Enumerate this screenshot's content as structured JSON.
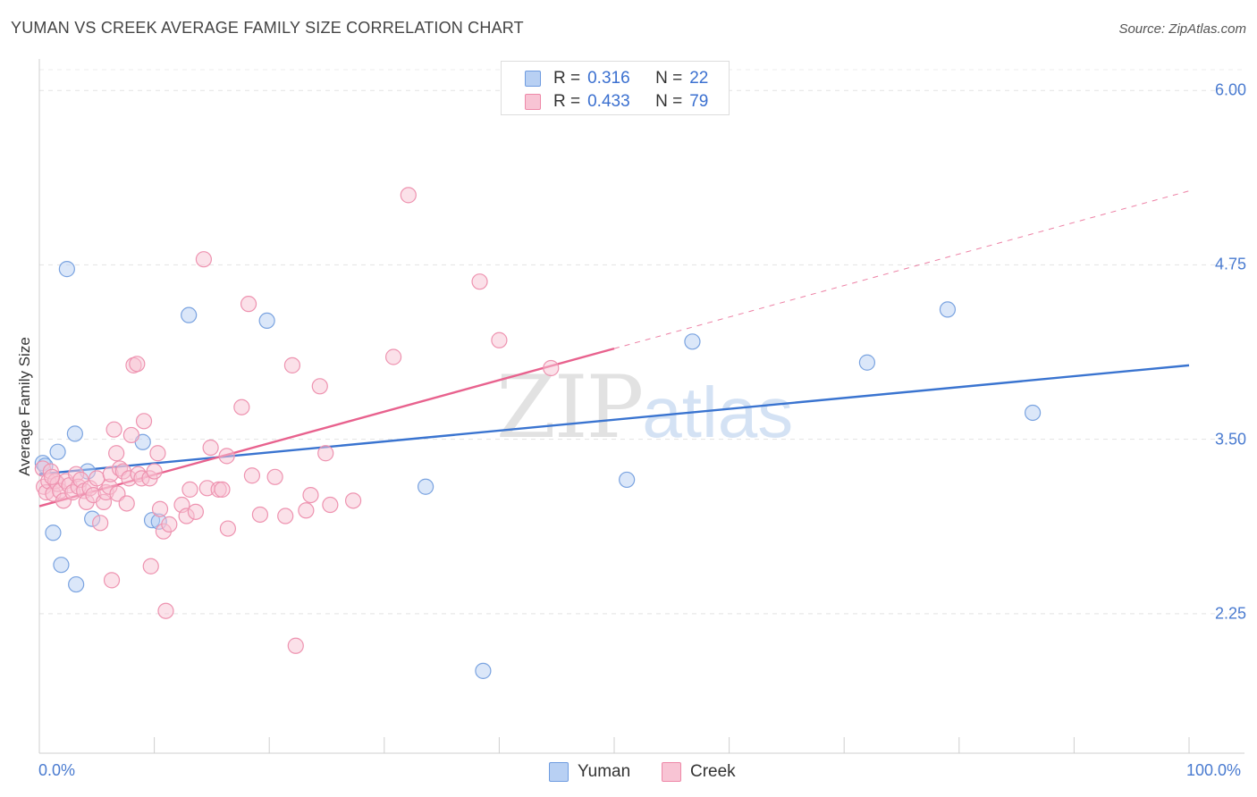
{
  "title": "YUMAN VS CREEK AVERAGE FAMILY SIZE CORRELATION CHART",
  "source": "Source: ZipAtlas.com",
  "watermark": {
    "zip": "ZIP",
    "atlas": "atlas"
  },
  "legend": {
    "r_label": "R =",
    "n_label": "N =",
    "items": [
      {
        "name": "Yuman",
        "r": "0.316",
        "n": "22",
        "fill": "#b8d0f3",
        "stroke": "#6f9ce0"
      },
      {
        "name": "Creek",
        "r": "0.433",
        "n": "79",
        "fill": "#f8c4d4",
        "stroke": "#ee88a8"
      }
    ]
  },
  "chart_data": {
    "type": "scatter",
    "title": "YUMAN VS CREEK AVERAGE FAMILY SIZE CORRELATION CHART",
    "xlabel": "",
    "ylabel": "Average Family Size",
    "xlim": [
      0,
      100
    ],
    "ylim": [
      1.25,
      6.2
    ],
    "x_tick_labels": [
      "0.0%",
      "100.0%"
    ],
    "y_ticks": [
      2.25,
      3.5,
      4.75,
      6.0
    ],
    "y_tick_labels": [
      "2.25",
      "3.50",
      "4.75",
      "6.00"
    ],
    "grid": true,
    "series": [
      {
        "name": "Yuman",
        "color": "#3a74d0",
        "fill": "#b8d0f3",
        "stroke": "#7aa3e0",
        "points": [
          [
            0.3,
            3.33
          ],
          [
            0.5,
            3.31
          ],
          [
            1.2,
            2.83
          ],
          [
            1.6,
            3.41
          ],
          [
            1.9,
            2.6
          ],
          [
            2.4,
            4.72
          ],
          [
            3.1,
            3.54
          ],
          [
            3.2,
            2.46
          ],
          [
            4.2,
            3.27
          ],
          [
            4.6,
            2.93
          ],
          [
            9.0,
            3.48
          ],
          [
            9.8,
            2.92
          ],
          [
            10.4,
            2.91
          ],
          [
            13.0,
            4.39
          ],
          [
            19.8,
            4.35
          ],
          [
            33.6,
            3.16
          ],
          [
            38.6,
            1.84
          ],
          [
            51.1,
            3.21
          ],
          [
            56.8,
            4.2
          ],
          [
            72.0,
            4.05
          ],
          [
            79.0,
            4.43
          ],
          [
            86.4,
            3.69
          ]
        ],
        "trend": {
          "x": [
            0,
            100
          ],
          "y": [
            3.25,
            4.03
          ],
          "dashed_to": null
        }
      },
      {
        "name": "Creek",
        "color": "#e8628e",
        "fill": "#f8c4d4",
        "stroke": "#ee93b0",
        "points": [
          [
            0.3,
            3.29
          ],
          [
            0.4,
            3.16
          ],
          [
            0.6,
            3.12
          ],
          [
            0.8,
            3.2
          ],
          [
            1.0,
            3.27
          ],
          [
            1.2,
            3.11
          ],
          [
            1.4,
            3.2
          ],
          [
            1.6,
            3.18
          ],
          [
            1.8,
            3.13
          ],
          [
            2.1,
            3.06
          ],
          [
            2.3,
            3.2
          ],
          [
            2.6,
            3.17
          ],
          [
            2.9,
            3.12
          ],
          [
            3.2,
            3.25
          ],
          [
            3.4,
            3.16
          ],
          [
            3.6,
            3.21
          ],
          [
            3.9,
            3.13
          ],
          [
            4.1,
            3.05
          ],
          [
            4.4,
            3.15
          ],
          [
            4.7,
            3.1
          ],
          [
            5.0,
            3.22
          ],
          [
            5.3,
            2.9
          ],
          [
            5.6,
            3.05
          ],
          [
            5.8,
            3.12
          ],
          [
            6.1,
            3.16
          ],
          [
            6.2,
            3.25
          ],
          [
            6.3,
            2.49
          ],
          [
            6.5,
            3.57
          ],
          [
            6.7,
            3.4
          ],
          [
            6.8,
            3.11
          ],
          [
            7.0,
            3.29
          ],
          [
            7.3,
            3.27
          ],
          [
            7.6,
            3.04
          ],
          [
            7.8,
            3.22
          ],
          [
            8.0,
            3.53
          ],
          [
            8.2,
            4.03
          ],
          [
            8.5,
            4.04
          ],
          [
            8.6,
            3.25
          ],
          [
            8.9,
            3.22
          ],
          [
            9.1,
            3.63
          ],
          [
            9.6,
            3.22
          ],
          [
            9.7,
            2.59
          ],
          [
            10.0,
            3.27
          ],
          [
            10.3,
            3.4
          ],
          [
            10.5,
            3.0
          ],
          [
            10.8,
            2.84
          ],
          [
            11.0,
            2.27
          ],
          [
            11.3,
            2.89
          ],
          [
            12.4,
            3.03
          ],
          [
            12.8,
            2.95
          ],
          [
            13.1,
            3.14
          ],
          [
            13.6,
            2.98
          ],
          [
            14.3,
            4.79
          ],
          [
            14.6,
            3.15
          ],
          [
            14.9,
            3.44
          ],
          [
            15.6,
            3.14
          ],
          [
            15.9,
            3.14
          ],
          [
            16.3,
            3.38
          ],
          [
            16.4,
            2.86
          ],
          [
            17.6,
            3.73
          ],
          [
            18.2,
            4.47
          ],
          [
            18.5,
            3.24
          ],
          [
            19.2,
            2.96
          ],
          [
            20.5,
            3.23
          ],
          [
            21.4,
            2.95
          ],
          [
            22.0,
            4.03
          ],
          [
            22.3,
            2.02
          ],
          [
            23.2,
            2.99
          ],
          [
            23.6,
            3.1
          ],
          [
            24.4,
            3.88
          ],
          [
            24.9,
            3.4
          ],
          [
            25.3,
            3.03
          ],
          [
            27.3,
            3.06
          ],
          [
            30.8,
            4.09
          ],
          [
            32.1,
            5.25
          ],
          [
            38.3,
            4.63
          ],
          [
            40.0,
            4.21
          ],
          [
            44.5,
            4.01
          ],
          [
            1.1,
            3.23
          ]
        ],
        "trend": {
          "x": [
            0,
            50
          ],
          "y": [
            3.02,
            4.15
          ],
          "dashed_to": {
            "x": 100,
            "y": 5.28
          }
        }
      }
    ]
  }
}
